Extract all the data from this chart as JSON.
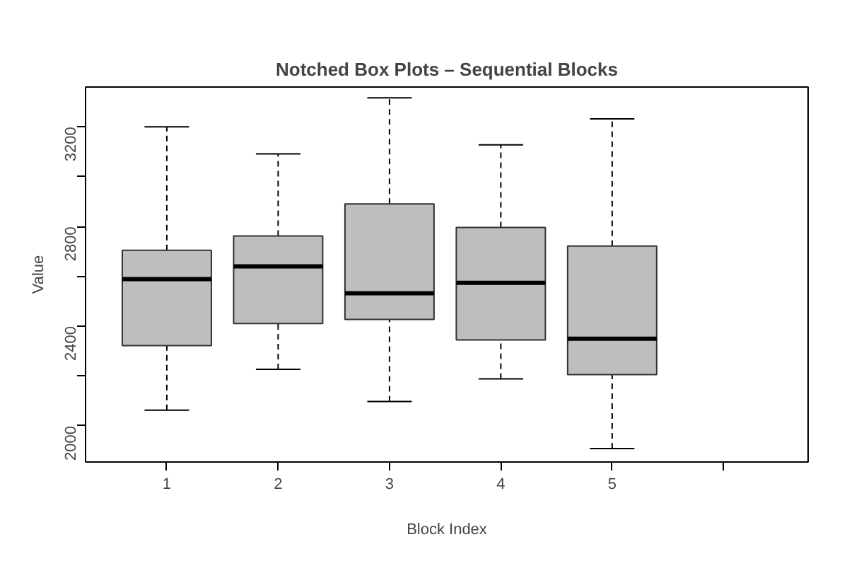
{
  "chart_data": {
    "type": "box",
    "title": "Notched Box Plots – Sequential Blocks",
    "xlabel": "Block Index",
    "ylabel": "Value",
    "x": [
      1,
      2,
      3,
      4,
      5
    ],
    "xlim": [
      0.27,
      6.76
    ],
    "xticks": [
      1,
      2,
      3,
      4,
      5,
      {
        "value": 6,
        "label": null
      }
    ],
    "ylim": [
      1855,
      3360
    ],
    "yticks": [
      2000,
      {
        "value": 2200,
        "label": null
      },
      2400,
      {
        "value": 2600,
        "label": null
      },
      2800,
      {
        "value": 3000,
        "label": null
      },
      3200
    ],
    "color": "#bebebe",
    "grid": false,
    "boxes": [
      {
        "low": 2063,
        "q1": 2322,
        "median": 2589,
        "q3": 2705,
        "high": 3200
      },
      {
        "low": 2227,
        "q1": 2411,
        "median": 2640,
        "q3": 2762,
        "high": 3092
      },
      {
        "low": 2098,
        "q1": 2427,
        "median": 2532,
        "q3": 2891,
        "high": 3317
      },
      {
        "low": 2189,
        "q1": 2345,
        "median": 2574,
        "q3": 2796,
        "high": 3128
      },
      {
        "low": 1909,
        "q1": 2206,
        "median": 2350,
        "q3": 2722,
        "high": 3232
      }
    ]
  }
}
